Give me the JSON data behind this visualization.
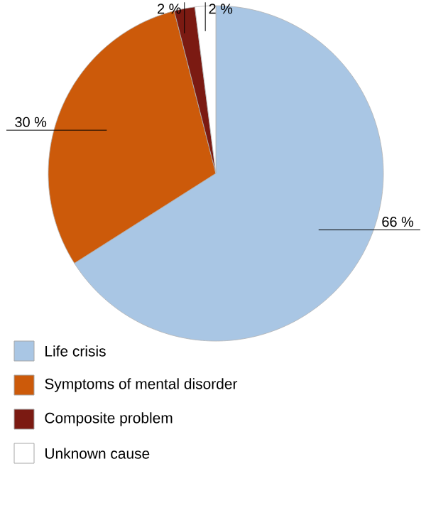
{
  "chart_data": {
    "type": "pie",
    "categories": [
      "Life crisis",
      "Symptoms of mental disorder",
      "Composite problem",
      "Unknown cause"
    ],
    "values": [
      66,
      30,
      2,
      2
    ],
    "value_labels": [
      "66 %",
      "30 %",
      "2 %",
      "2 %"
    ],
    "colors": [
      "#a9c6e4",
      "#cc5a0a",
      "#7b1a12",
      "#ffffff"
    ],
    "legend": "bottom"
  }
}
